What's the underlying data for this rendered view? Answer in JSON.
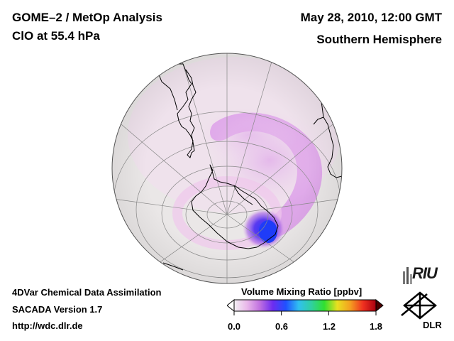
{
  "header": {
    "title_line1": "GOME–2 / MetOp Analysis",
    "title_line2": "ClO at 55.4 hPa",
    "date": "May 28, 2010, 12:00 GMT",
    "hemisphere": "Southern Hemisphere"
  },
  "footer": {
    "line1": "4DVar Chemical Data Assimilation",
    "line2": "SACADA Version 1.7",
    "line3": "http://wdc.dlr.de"
  },
  "legend": {
    "title": "Volume Mixing Ratio [ppbv]",
    "ticks": [
      "0.0",
      "0.6",
      "1.2",
      "1.8"
    ],
    "min": 0.0,
    "max": 1.8,
    "colors": [
      "#f4f0f4",
      "#e9b8ea",
      "#c070e0",
      "#6c2cf0",
      "#2050ff",
      "#30c0f0",
      "#30d0a0",
      "#30e030",
      "#e8e020",
      "#f4a020",
      "#f03020",
      "#a80010"
    ]
  },
  "logos": {
    "riu": "RIU",
    "dlr": "DLR"
  },
  "map": {
    "projection": "orthographic",
    "globe_color": "#eae7e7",
    "grid_color": "#8a8a8a"
  }
}
